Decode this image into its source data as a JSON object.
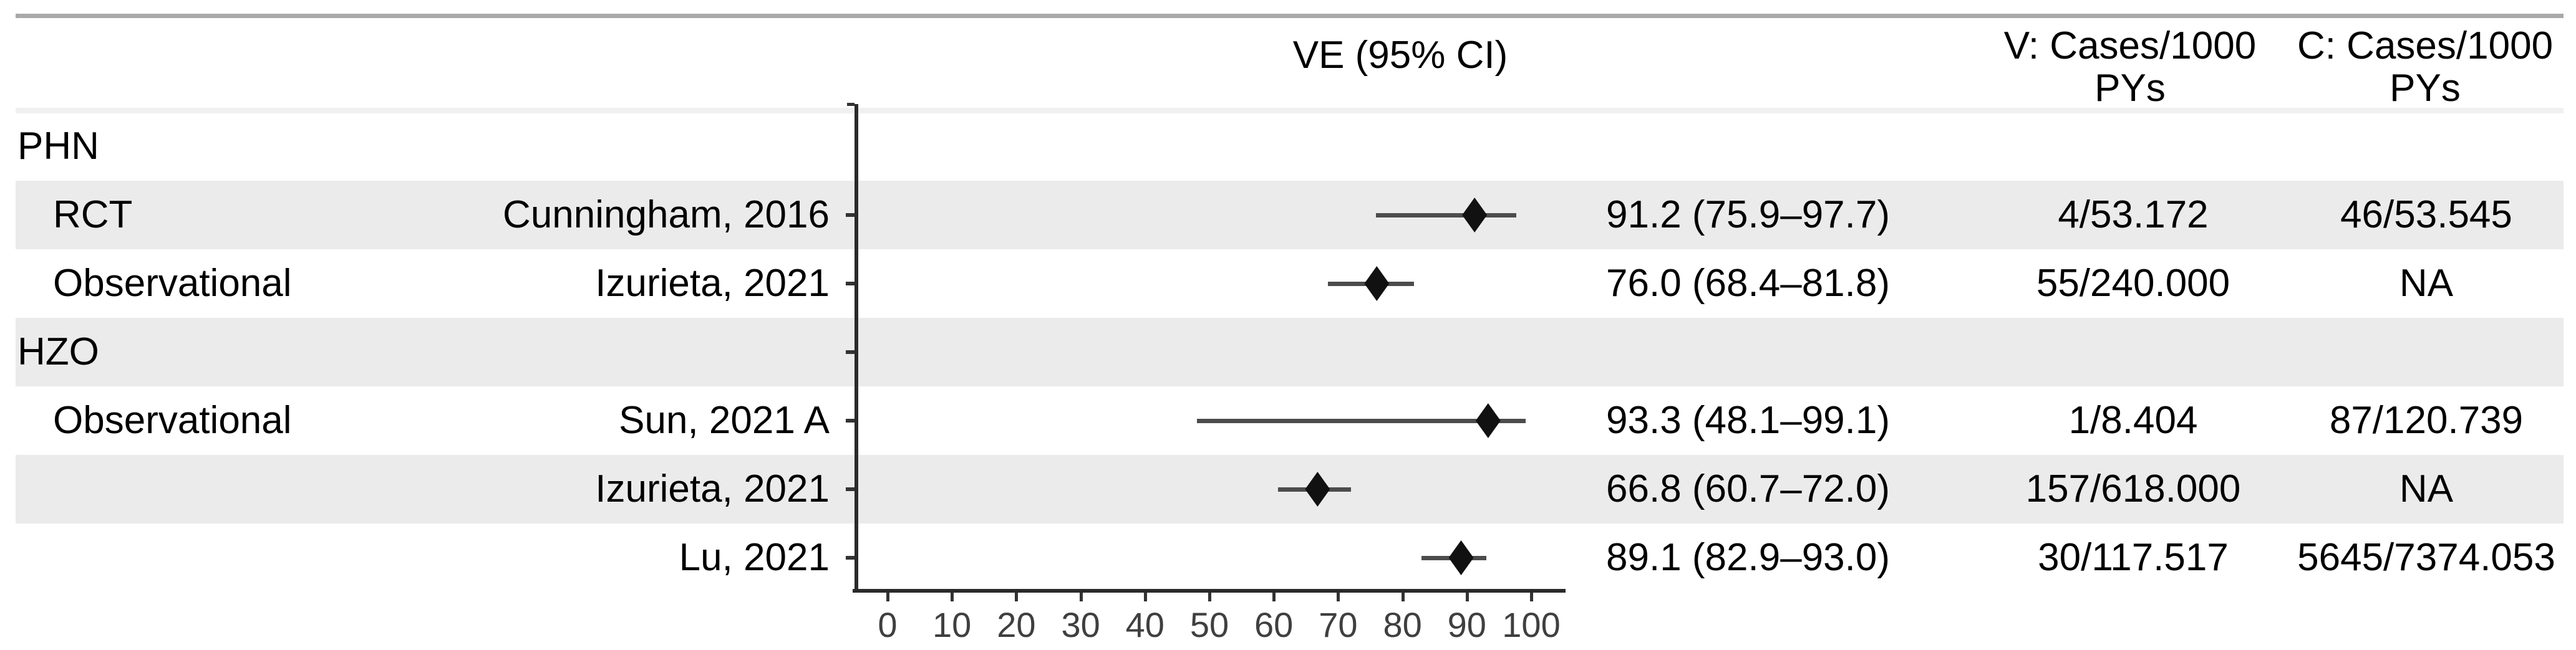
{
  "headers": {
    "ve_ci": "VE (95% CI)",
    "v_line1": "V: Cases/1000",
    "v_line2": "PYs",
    "c_line1": "C: Cases/1000",
    "c_line2": "PYs"
  },
  "colors": {
    "background": "#ffffff",
    "stripe_gray": "#ebebeb",
    "stripe_light": "#f0f0f0",
    "top_rule": "#a9a9a9",
    "axis": "#2a2a2a",
    "tick": "#333333",
    "tick_label": "#3f3f3f",
    "ci_line": "#4c4c4c",
    "diamond": "#111111",
    "text": "#000000"
  },
  "chart_data": {
    "type": "scatter",
    "variant": "forest-plot",
    "title": "VE (95% CI)",
    "xlabel": "",
    "xlim": [
      0,
      100
    ],
    "x_ticks": [
      0,
      10,
      20,
      30,
      40,
      50,
      60,
      70,
      80,
      90,
      100
    ],
    "grid": false,
    "legend": "none",
    "rows": [
      {
        "group_label": "PHN",
        "design": "",
        "study": "",
        "ve": null,
        "ci_low": null,
        "ci_high": null,
        "ve_ci_text": "",
        "v_cases": "",
        "c_cases": "",
        "shaded": false
      },
      {
        "group_label": "",
        "design": "RCT",
        "study": "Cunningham, 2016",
        "ve": 91.2,
        "ci_low": 75.9,
        "ci_high": 97.7,
        "ve_ci_text": "91.2 (75.9–97.7)",
        "v_cases": "4/53.172",
        "c_cases": "46/53.545",
        "shaded": true
      },
      {
        "group_label": "",
        "design": "Observational",
        "study": "Izurieta, 2021",
        "ve": 76.0,
        "ci_low": 68.4,
        "ci_high": 81.8,
        "ve_ci_text": "76.0 (68.4–81.8)",
        "v_cases": "55/240.000",
        "c_cases": "NA",
        "shaded": false
      },
      {
        "group_label": "HZO",
        "design": "",
        "study": "",
        "ve": null,
        "ci_low": null,
        "ci_high": null,
        "ve_ci_text": "",
        "v_cases": "",
        "c_cases": "",
        "shaded": true
      },
      {
        "group_label": "",
        "design": "Observational",
        "study": "Sun, 2021 A",
        "ve": 93.3,
        "ci_low": 48.1,
        "ci_high": 99.1,
        "ve_ci_text": "93.3 (48.1–99.1)",
        "v_cases": "1/8.404",
        "c_cases": "87/120.739",
        "shaded": false
      },
      {
        "group_label": "",
        "design": "",
        "study": "Izurieta, 2021",
        "ve": 66.8,
        "ci_low": 60.7,
        "ci_high": 72.0,
        "ve_ci_text": "66.8 (60.7–72.0)",
        "v_cases": "157/618.000",
        "c_cases": "NA",
        "shaded": true
      },
      {
        "group_label": "",
        "design": "",
        "study": "Lu, 2021",
        "ve": 89.1,
        "ci_low": 82.9,
        "ci_high": 93.0,
        "ve_ci_text": "89.1 (82.9–93.0)",
        "v_cases": "30/117.517",
        "c_cases": "5645/7374.053",
        "shaded": false
      }
    ]
  }
}
